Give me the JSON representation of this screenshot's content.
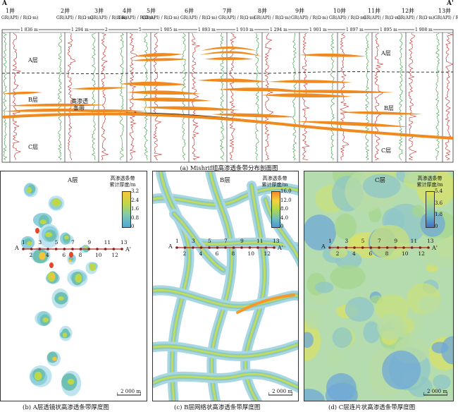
{
  "section_a": {
    "section_start": "A",
    "section_end": "A'",
    "wells": [
      "1井",
      "2井",
      "3井",
      "4井",
      "5井",
      "6井",
      "7井",
      "8井",
      "9井",
      "10井",
      "11井",
      "12井",
      "13井"
    ],
    "log_header": "GR(API) / R(Ω·m)",
    "distances": [
      "1 836 m",
      "1 294 m",
      "2",
      "5",
      "1 905 m",
      "1 893 m",
      "1 910 m",
      "1 294 m",
      "1 901 m",
      "1 897 m",
      "1 895 m",
      "1 908 m"
    ],
    "layers_left": {
      "a": "A层",
      "b": "B层",
      "c": "C层"
    },
    "layers_right": {
      "a": "A层",
      "b": "B层",
      "c": "C层"
    },
    "streak_label_1": "高渗透",
    "streak_label_2": "条带",
    "caption": "(a) Mishrif组高渗透条带分布剖面图"
  },
  "map_b": {
    "title": "A层",
    "legend_title_1": "高渗透条带",
    "legend_title_2": "累计厚度/m",
    "ticks": [
      "3.2",
      "2.4",
      "1.6",
      "0.8",
      "0"
    ],
    "scale": "2 000 m",
    "caption": "(b) A层透镜状高渗透条带厚度图"
  },
  "map_c": {
    "title": "B层",
    "legend_title_1": "高渗透条带",
    "legend_title_2": "累计厚度/m",
    "ticks": [
      "16.0",
      "12.0",
      "8.0",
      "4.0",
      "0"
    ],
    "scale": "2 000 m",
    "caption": "(c) B层网络状高渗透条带厚度图"
  },
  "map_d": {
    "title": "C层",
    "legend_title_1": "高渗透条带",
    "legend_title_2": "累计厚度/m",
    "ticks": [
      "5.4",
      "3.6",
      "1.8",
      "0"
    ],
    "scale": "2 000 m",
    "caption": "(d) C层连片状高渗透条带厚度图"
  },
  "map_wells": {
    "section_start": "A",
    "section_end": "A'",
    "top_numbers": [
      "1",
      "3",
      "5",
      "7",
      "9",
      "11",
      "13"
    ],
    "bottom_numbers": [
      "2",
      "4",
      "6",
      "8",
      "10",
      "12"
    ]
  },
  "colors": {
    "streak": "#f08a1e",
    "section_line": "#c0201b",
    "well_dot": "#8b1a1a"
  }
}
